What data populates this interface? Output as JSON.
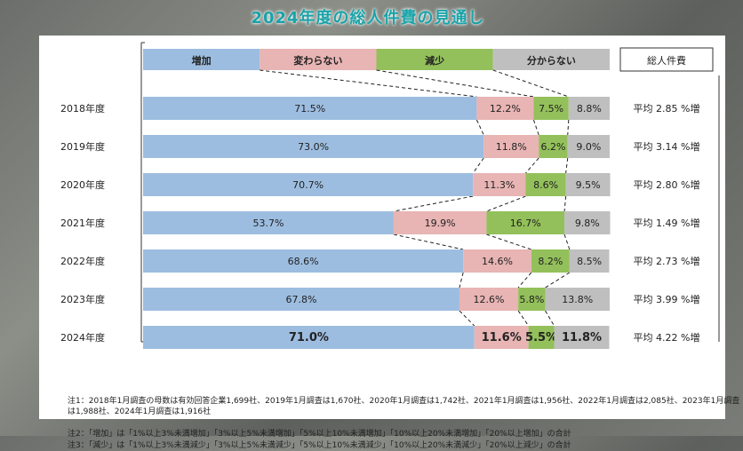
{
  "chart_data": {
    "type": "bar",
    "stacked": true,
    "orientation": "horizontal",
    "title": "2024年度の総人件費の見通し",
    "categories": [
      "2018年度",
      "2019年度",
      "2020年度",
      "2021年度",
      "2022年度",
      "2023年度",
      "2024年度"
    ],
    "series": [
      {
        "name": "増加",
        "color": "#9dbde0",
        "values": [
          71.5,
          73.0,
          70.7,
          53.7,
          68.6,
          67.8,
          71.0
        ],
        "labels": [
          "71.5%",
          "73.0%",
          "70.7%",
          "53.7%",
          "68.6%",
          "67.8%",
          "71.0%"
        ]
      },
      {
        "name": "変わらない",
        "color": "#e8b4b4",
        "values": [
          12.2,
          11.8,
          11.3,
          19.9,
          14.6,
          12.6,
          11.6
        ],
        "labels": [
          "12.2%",
          "11.8%",
          "11.3%",
          "19.9%",
          "14.6%",
          "12.6%",
          "11.6%"
        ]
      },
      {
        "name": "減少",
        "color": "#93c05a",
        "values": [
          7.5,
          6.2,
          8.6,
          16.7,
          8.2,
          5.8,
          5.5
        ],
        "labels": [
          "7.5%",
          "6.2%",
          "8.6%",
          "16.7%",
          "8.2%",
          "5.8%",
          "5.5%"
        ]
      },
      {
        "name": "分からない",
        "color": "#bfbfbf",
        "values": [
          8.8,
          9.0,
          9.5,
          9.8,
          8.5,
          13.8,
          11.8
        ],
        "labels": [
          "8.8%",
          "9.0%",
          "9.5%",
          "9.8%",
          "8.5%",
          "13.8%",
          "11.8%"
        ]
      }
    ],
    "side_header": "総人件費",
    "side_labels": [
      "平均 2.85 %増",
      "平均 3.14 %増",
      "平均 2.80 %増",
      "平均 1.49 %増",
      "平均 2.73 %増",
      "平均 3.99 %増",
      "平均 4.22 %増"
    ],
    "highlight_last_row": true,
    "xlim": [
      0,
      100
    ]
  },
  "notes": {
    "note1": "注1：2018年1月調査の母数は有効回答企業1,699社、2019年1月調査は1,670社、2020年1月調査は1,742社、2021年1月調査は1,956社、2022年1月調査は2,085社、2023年1月調査は1,988社、2024年1月調査は1,916社",
    "note2": "注2：「増加」は「1%以上3%未満増加」「3%以上5%未満増加」「5%以上10%未満増加」「10%以上20%未満増加」「20%以上増加」の合計",
    "note3": "注3：「減少」は「1%以上3%未満減少」「3%以上5%未満減少」「5%以上10%未満減少」「10%以上20%未満減少」「20%以上減少」の合計"
  }
}
